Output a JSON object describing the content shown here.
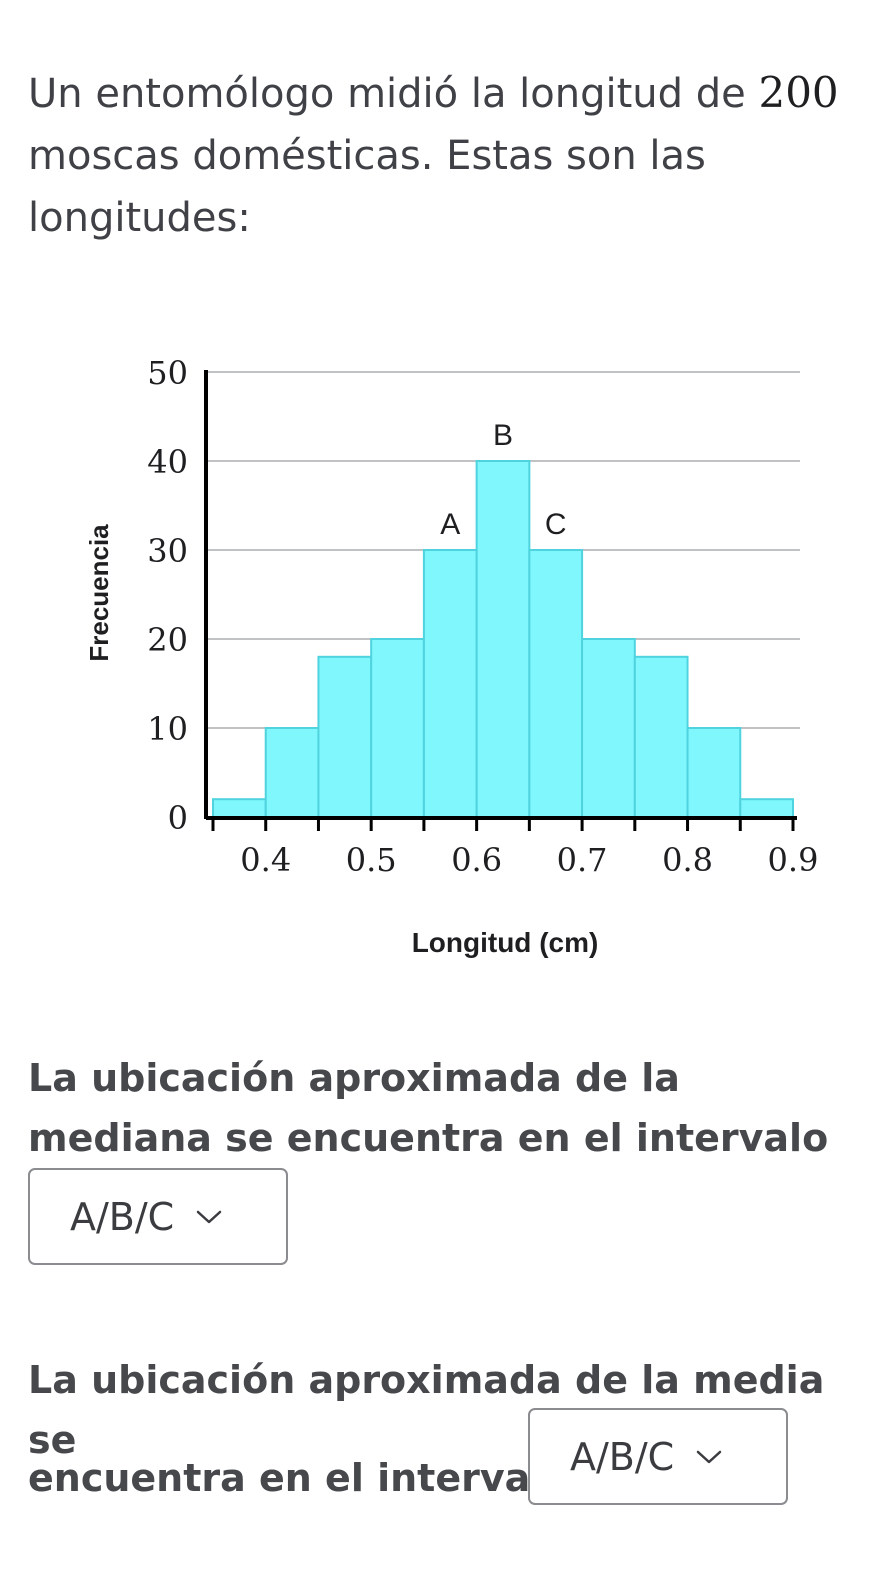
{
  "question": {
    "intro_before": "Un entomólogo midió la longitud de ",
    "intro_number": "200",
    "intro_after": " moscas domésticas. Estas son las longitudes:"
  },
  "chart_data": {
    "type": "bar",
    "xlabel": "Longitud (cm)",
    "ylabel": "Frecuencia",
    "ylim": [
      0,
      50
    ],
    "yticks": [
      0,
      10,
      20,
      30,
      40,
      50
    ],
    "xlim": [
      0.35,
      0.9
    ],
    "xticks": [
      0.4,
      0.5,
      0.6,
      0.7,
      0.8,
      0.9
    ],
    "bin_width": 0.05,
    "grid": true,
    "bins": [
      {
        "start": 0.35,
        "end": 0.4,
        "value": 2,
        "label": ""
      },
      {
        "start": 0.4,
        "end": 0.45,
        "value": 10,
        "label": ""
      },
      {
        "start": 0.45,
        "end": 0.5,
        "value": 18,
        "label": ""
      },
      {
        "start": 0.5,
        "end": 0.55,
        "value": 20,
        "label": ""
      },
      {
        "start": 0.55,
        "end": 0.6,
        "value": 30,
        "label": "A"
      },
      {
        "start": 0.6,
        "end": 0.65,
        "value": 40,
        "label": "B"
      },
      {
        "start": 0.65,
        "end": 0.7,
        "value": 30,
        "label": "C"
      },
      {
        "start": 0.7,
        "end": 0.75,
        "value": 20,
        "label": ""
      },
      {
        "start": 0.75,
        "end": 0.8,
        "value": 18,
        "label": ""
      },
      {
        "start": 0.8,
        "end": 0.85,
        "value": 10,
        "label": ""
      },
      {
        "start": 0.85,
        "end": 0.9,
        "value": 2,
        "label": ""
      }
    ],
    "colors": {
      "bar_fill": "#80f7fd",
      "bar_stroke": "#4fd3de",
      "grid": "#c0c2c4",
      "axis": "#000000"
    }
  },
  "median_question": {
    "text": "La ubicación aproximada de la mediana se encuentra en el intervalo",
    "dropdown_value": "A/B/C",
    "options": [
      "A",
      "B",
      "C"
    ]
  },
  "mean_question": {
    "text_line1": "La ubicación aproximada de la media se",
    "text_line2": "encuentra en el intervalo",
    "dropdown_value": "A/B/C",
    "options": [
      "A",
      "B",
      "C"
    ]
  },
  "icons": {
    "dropdown": "chevron-down-icon"
  }
}
